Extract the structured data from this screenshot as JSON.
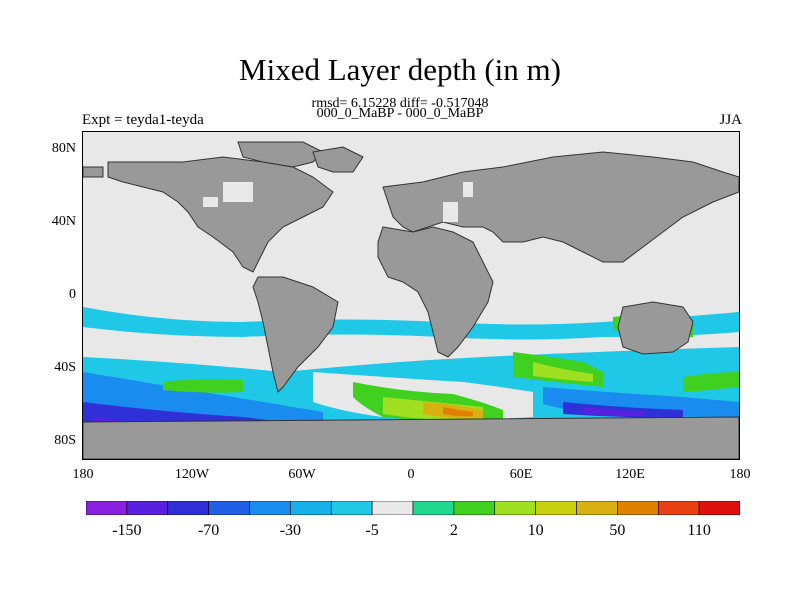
{
  "title": "Mixed Layer depth (in m)",
  "stats_line": "rmsd= 6.15228 diff= -0.517048",
  "comparison_line": "000_0_MaBP - 000_0_MaBP",
  "expt_label": "Expt = teyda1-teyda",
  "season_label": "JJA",
  "axes": {
    "y_ticks": [
      "80N",
      "40N",
      "0",
      "40S",
      "80S"
    ],
    "x_ticks": [
      "180",
      "120W",
      "60W",
      "0",
      "60E",
      "120E",
      "180"
    ]
  },
  "colorbar": {
    "colors": [
      "#8a20e0",
      "#5a20e0",
      "#3030d8",
      "#2060e8",
      "#1a8cf0",
      "#18b0e8",
      "#20c8e8",
      "#e8e8e8",
      "#20d890",
      "#40d020",
      "#a0e020",
      "#c8d010",
      "#d8b010",
      "#e08000",
      "#e84010",
      "#e01010"
    ],
    "labels": [
      "-150",
      "-70",
      "-30",
      "-5",
      "2",
      "10",
      "50",
      "110"
    ]
  },
  "map_colors": {
    "background": "#e8e8e8",
    "land": "#999999",
    "coast": "#333333"
  }
}
